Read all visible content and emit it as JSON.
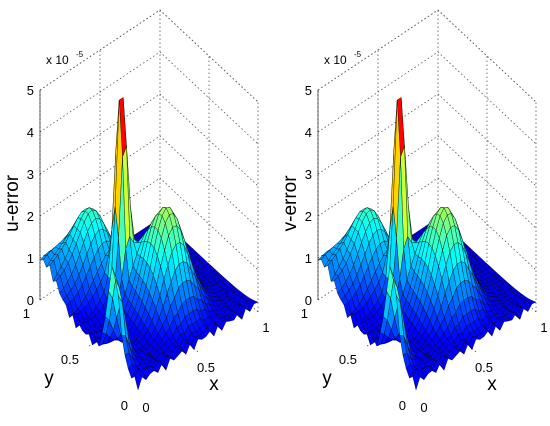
{
  "chart_data": [
    {
      "type": "surface",
      "zlabel": "u-error",
      "xlabel": "x",
      "ylabel": "y",
      "z_exponent_label": "x 10",
      "z_exponent": "-5",
      "xticks": [
        "0",
        "0.5",
        "1"
      ],
      "yticks": [
        "0",
        "0.5",
        "1"
      ],
      "zticks": [
        "0",
        "1",
        "2",
        "3",
        "4",
        "5"
      ],
      "xlim": [
        0,
        1
      ],
      "ylim": [
        0,
        1
      ],
      "zlim": [
        0,
        5
      ],
      "grid": true,
      "colormap": "jet",
      "features": [
        {
          "x": 0.35,
          "y": 0.6,
          "z": 5.0
        },
        {
          "x": 0.0,
          "y": 0.25,
          "z": 2.2
        },
        {
          "x": 0.55,
          "y": 0.35,
          "z": 2.3
        },
        {
          "x": 0.3,
          "y": 0.85,
          "z": 1.8
        },
        {
          "x": 0.45,
          "y": 0.55,
          "z": 1.0
        },
        {
          "x": 0.05,
          "y": 0.95,
          "z": 0.8
        }
      ]
    },
    {
      "type": "surface",
      "zlabel": "v-error",
      "xlabel": "x",
      "ylabel": "y",
      "z_exponent_label": "x 10",
      "z_exponent": "-5",
      "xticks": [
        "0",
        "0.5",
        "1"
      ],
      "yticks": [
        "0",
        "0.5",
        "1"
      ],
      "zticks": [
        "0",
        "1",
        "2",
        "3",
        "4",
        "5"
      ],
      "xlim": [
        0,
        1
      ],
      "ylim": [
        0,
        1
      ],
      "zlim": [
        0,
        5
      ],
      "grid": true,
      "colormap": "jet",
      "features": [
        {
          "x": 0.35,
          "y": 0.6,
          "z": 5.0
        },
        {
          "x": 0.0,
          "y": 0.25,
          "z": 2.2
        },
        {
          "x": 0.55,
          "y": 0.35,
          "z": 2.3
        },
        {
          "x": 0.3,
          "y": 0.85,
          "z": 1.8
        },
        {
          "x": 0.45,
          "y": 0.55,
          "z": 1.0
        },
        {
          "x": 0.05,
          "y": 0.95,
          "z": 0.8
        }
      ]
    }
  ]
}
